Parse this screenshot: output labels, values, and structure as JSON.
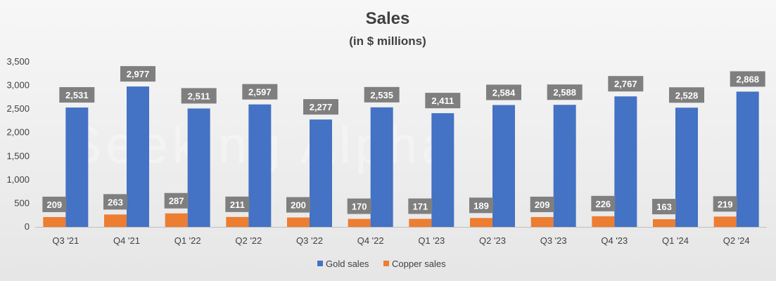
{
  "watermark": "Seeking Alpha",
  "chart_data": {
    "type": "bar",
    "title": "Sales",
    "subtitle": "(in $ millions)",
    "xlabel": "",
    "ylabel": "",
    "ylim": [
      0,
      3500
    ],
    "yticks": [
      0,
      500,
      1000,
      1500,
      2000,
      2500,
      3000,
      3500
    ],
    "ytick_labels": [
      "0",
      "500",
      "1,000",
      "1,500",
      "2,000",
      "2,500",
      "3,000",
      "3,500"
    ],
    "grid": false,
    "legend_position": "bottom",
    "categories": [
      "Q3 '21",
      "Q4 '21",
      "Q1 '22",
      "Q2 '22",
      "Q3 '22",
      "Q4 '22",
      "Q1 '23",
      "Q2 '23",
      "Q3 '23",
      "Q4 '23",
      "Q1 '24",
      "Q2 '24"
    ],
    "series": [
      {
        "name": "Copper sales",
        "color": "#ed7d31",
        "values": [
          209,
          263,
          287,
          211,
          200,
          170,
          171,
          189,
          209,
          226,
          163,
          219
        ],
        "labels": [
          "209",
          "263",
          "287",
          "211",
          "200",
          "170",
          "171",
          "189",
          "209",
          "226",
          "163",
          "219"
        ]
      },
      {
        "name": "Gold sales",
        "color": "#4472c4",
        "values": [
          2531,
          2977,
          2511,
          2597,
          2277,
          2535,
          2411,
          2584,
          2588,
          2767,
          2528,
          2868
        ],
        "labels": [
          "2,531",
          "2,977",
          "2,511",
          "2,597",
          "2,277",
          "2,535",
          "2,411",
          "2,584",
          "2,588",
          "2,767",
          "2,528",
          "2,868"
        ]
      }
    ],
    "legend_order": [
      "Gold sales",
      "Copper sales"
    ],
    "data_label_bg": "#7f7f7f"
  }
}
